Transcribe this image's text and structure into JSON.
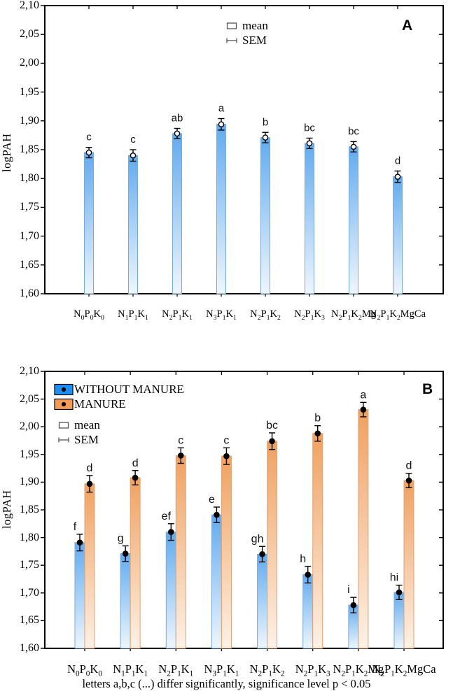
{
  "page": {
    "background": "#ffffff"
  },
  "chart_data": [
    {
      "type": "bar",
      "panel_label": "A",
      "ylabel": "logPAH",
      "ylim": [
        1.6,
        2.1
      ],
      "ytick_step": 0.05,
      "ytick_labels": [
        "2,10",
        "2,05",
        "2,00",
        "1,95",
        "1,90",
        "1,85",
        "1,80",
        "1,75",
        "1,70",
        "1,65",
        "1,60"
      ],
      "categories": [
        "N0P0K0",
        "N1P1K1",
        "N2P1K1",
        "N3P1K1",
        "N2P1K2",
        "N2P1K3",
        "N2P1K2Mg",
        "N2P1K2MgCa"
      ],
      "grid": false,
      "legend_position": "top-center-inside",
      "series": [
        {
          "name": "",
          "marker": "open-circle",
          "bar_color_top": "#62abee",
          "bar_color_bottom": "#eef6fd",
          "bar_edge_color": "#7aa9d8",
          "values": [
            1.845,
            1.84,
            1.878,
            1.894,
            1.871,
            1.861,
            1.855,
            1.803
          ],
          "sem": [
            0.009,
            0.01,
            0.009,
            0.01,
            0.009,
            0.009,
            0.009,
            0.01
          ],
          "letters": [
            "c",
            "c",
            "ab",
            "a",
            "b",
            "bc",
            "bc",
            "d"
          ]
        }
      ],
      "legend": {
        "mean_label": "mean",
        "sem_label": "SEM"
      }
    },
    {
      "type": "bar",
      "panel_label": "B",
      "ylabel": "logPAH",
      "ylim": [
        1.6,
        2.1
      ],
      "ytick_step": 0.05,
      "ytick_labels": [
        "2,10",
        "2,05",
        "2,00",
        "1,95",
        "1,90",
        "1,85",
        "1,80",
        "1,75",
        "1,70",
        "1,65",
        "1,60"
      ],
      "categories": [
        "N0P0K0",
        "N1P1K1",
        "N2P1K1",
        "N3P1K1",
        "N2P1K2",
        "N2P1K3",
        "N2P1K2Mg",
        "N2P1K2MgCa"
      ],
      "grid": false,
      "legend_position": "top-left-inside",
      "series": [
        {
          "name": "WITHOUT MANURE",
          "marker": "filled-circle",
          "swatch_color": "#1e8ff2",
          "bar_color_top": "#62abee",
          "bar_color_bottom": "#eef6fd",
          "bar_edge_color": "#7aa9d8",
          "values": [
            1.791,
            1.771,
            1.81,
            1.841,
            1.77,
            1.733,
            1.678,
            1.701
          ],
          "sem": [
            0.015,
            0.014,
            0.015,
            0.014,
            0.014,
            0.015,
            0.014,
            0.013
          ],
          "letters": [
            "f",
            "g",
            "ef",
            "e",
            "gh",
            "h",
            "i",
            "hi"
          ]
        },
        {
          "name": "MANURE",
          "marker": "filled-circle",
          "swatch_color": "#f29c57",
          "bar_color_top": "#f0a160",
          "bar_color_bottom": "#fdf1e6",
          "bar_edge_color": "#dca277",
          "values": [
            1.897,
            1.908,
            1.948,
            1.947,
            1.974,
            1.988,
            2.031,
            1.903
          ],
          "sem": [
            0.015,
            0.013,
            0.014,
            0.015,
            0.015,
            0.014,
            0.013,
            0.013
          ],
          "letters": [
            "d",
            "d",
            "c",
            "c",
            "bc",
            "b",
            "a",
            "d"
          ]
        }
      ],
      "legend": {
        "mean_label": "mean",
        "sem_label": "SEM"
      },
      "caption": "letters a,b,c (...) differ significantly, significance level p < 0.05"
    }
  ]
}
